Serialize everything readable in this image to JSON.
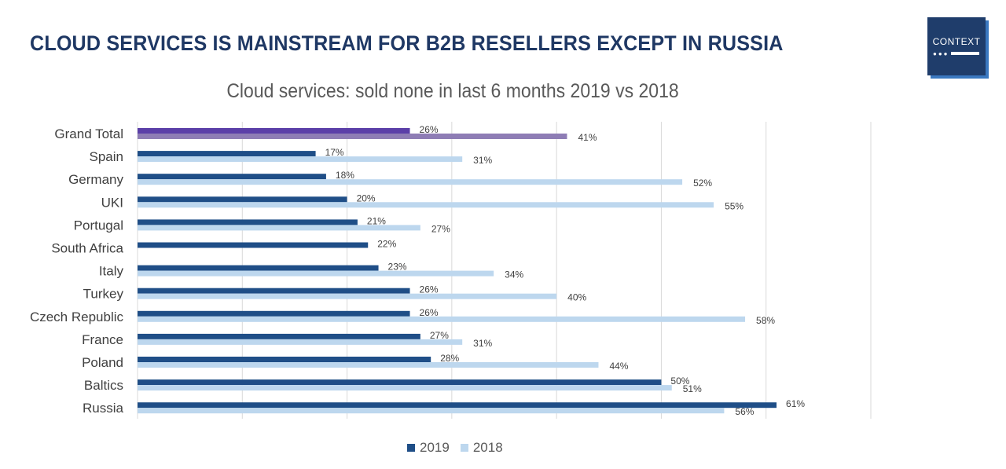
{
  "header": {
    "title": "CLOUD SERVICES IS MAINSTREAM FOR B2B RESELLERS EXCEPT IN RUSSIA",
    "logo_text": "CONTEXT"
  },
  "chart_data": {
    "type": "bar",
    "orientation": "horizontal",
    "title": "Cloud services: sold none in last 6 months 2019 vs 2018",
    "categories": [
      "Grand Total",
      "Spain",
      "Germany",
      "UKI",
      "Portugal",
      "South Africa",
      "Italy",
      "Turkey",
      "Czech Republic",
      "France",
      "Poland",
      "Baltics",
      "Russia"
    ],
    "series": [
      {
        "name": "2019",
        "color": "#1f4e87",
        "highlight_color": "#5b3fa8",
        "values": [
          26,
          17,
          18,
          20,
          21,
          22,
          23,
          26,
          26,
          27,
          28,
          50,
          61
        ]
      },
      {
        "name": "2018",
        "color": "#bdd7ee",
        "highlight_color": "#8e7db5",
        "values": [
          41,
          31,
          52,
          55,
          27,
          null,
          34,
          40,
          58,
          31,
          44,
          51,
          56
        ]
      }
    ],
    "xlim": [
      0,
      70
    ],
    "grid": true,
    "legend": "bottom",
    "value_suffix": "%"
  }
}
